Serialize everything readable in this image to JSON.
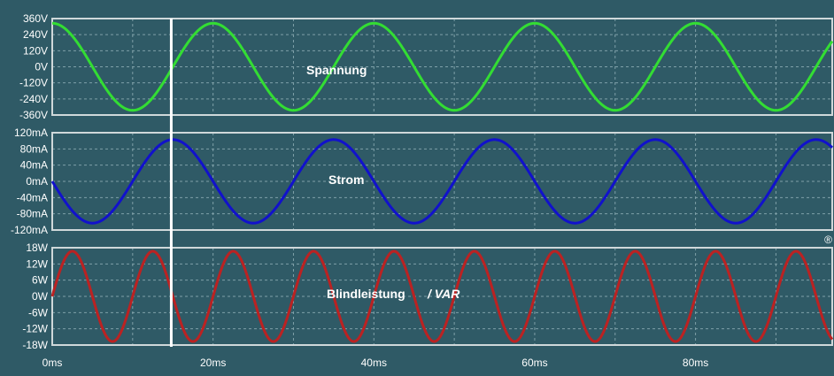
{
  "chart_data": [
    {
      "type": "line",
      "name": "voltage",
      "label": "Spannung",
      "color": "#33dd33",
      "yticks": [
        "360V",
        "240V",
        "120V",
        "0V",
        "-120V",
        "-240V",
        "-360V"
      ],
      "ylim": [
        -360,
        360
      ],
      "series": [
        {
          "amplitude": 325,
          "frequency_hz": 50,
          "phase_deg": -90,
          "offset": 0
        }
      ]
    },
    {
      "type": "line",
      "name": "current",
      "label": "Strom",
      "color": "#1111cc",
      "yticks": [
        "120mA",
        "80mA",
        "40mA",
        "0mA",
        "-40mA",
        "-80mA",
        "-120mA"
      ],
      "ylim": [
        -120,
        120
      ],
      "series": [
        {
          "amplitude": 103,
          "frequency_hz": 50,
          "phase_deg": -180,
          "offset": 0
        }
      ]
    },
    {
      "type": "line",
      "name": "reactive-power",
      "label": "Blindleistung",
      "label_suffix": "/ VAR",
      "color": "#bb2222",
      "yticks": [
        "18W",
        "12W",
        "6W",
        "0W",
        "-6W",
        "-12W",
        "-18W"
      ],
      "ylim": [
        -18,
        18
      ],
      "series": [
        {
          "amplitude": 16.7,
          "frequency_hz": 100,
          "phase_deg": 0,
          "offset": 0
        }
      ]
    }
  ],
  "x_axis": {
    "ticks": [
      "0ms",
      "20ms",
      "40ms",
      "60ms",
      "80ms"
    ],
    "tick_values_ms": [
      0,
      20,
      40,
      60,
      80
    ],
    "xlim_ms": [
      0,
      97
    ]
  },
  "cursor": {
    "time_ms": 14.8,
    "color": "#ffffff"
  },
  "corner_marker": {
    "text": "®",
    "color": "#cc3333"
  }
}
